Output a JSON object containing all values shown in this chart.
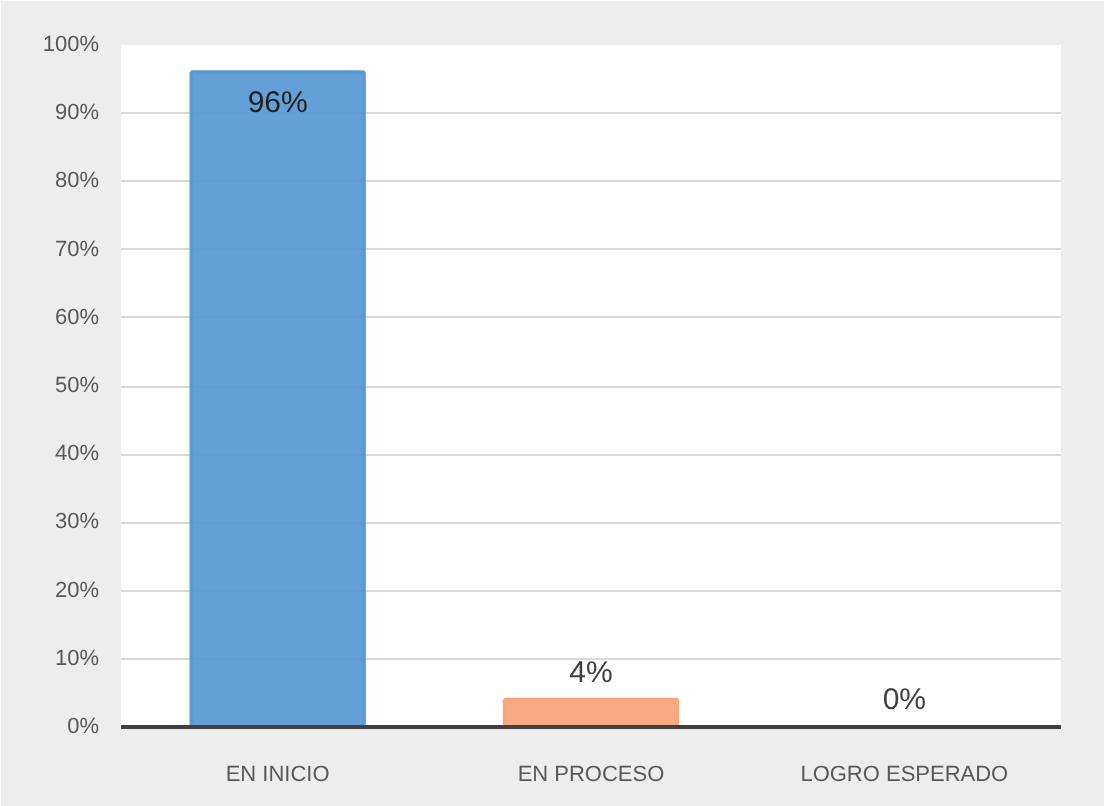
{
  "chart_data": {
    "type": "bar",
    "categories": [
      "EN INICIO",
      "EN PROCESO",
      "LOGRO ESPERADO"
    ],
    "values": [
      96,
      4,
      0
    ],
    "colors": [
      "#5b9bd5",
      "#f8a77c",
      "#5f9e3a"
    ],
    "value_labels": [
      "96%",
      "4%",
      "0%"
    ],
    "ylim": [
      0,
      100
    ],
    "yticks": [
      {
        "value": 0,
        "label": "0%"
      },
      {
        "value": 10,
        "label": "10%"
      },
      {
        "value": 20,
        "label": "20%"
      },
      {
        "value": 30,
        "label": "30%"
      },
      {
        "value": 40,
        "label": "40%"
      },
      {
        "value": 50,
        "label": "50%"
      },
      {
        "value": 60,
        "label": "60%"
      },
      {
        "value": 70,
        "label": "70%"
      },
      {
        "value": 80,
        "label": "80%"
      },
      {
        "value": 90,
        "label": "90%"
      },
      {
        "value": 100,
        "label": "100%"
      }
    ],
    "grid": "y"
  }
}
